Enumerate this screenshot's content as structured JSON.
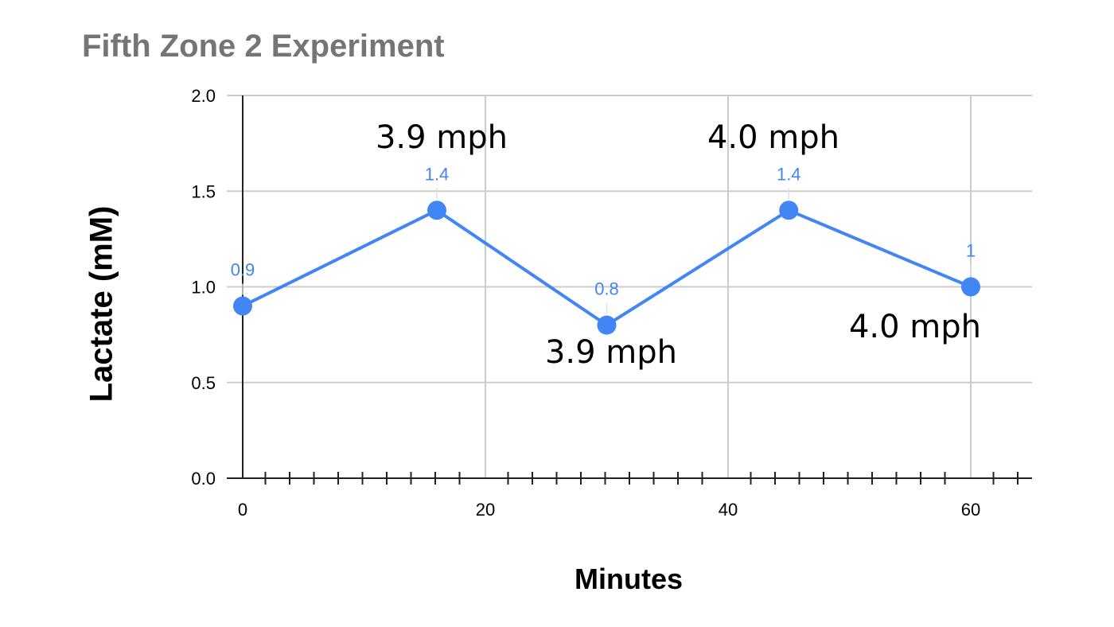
{
  "chart_data": {
    "type": "line",
    "title": "Fifth Zone 2 Experiment",
    "xlabel": "Minutes",
    "ylabel": "Lactate (mM)",
    "x": [
      0,
      16,
      30,
      45,
      60
    ],
    "series": [
      {
        "name": "Lactate (mM)",
        "values": [
          0.9,
          1.4,
          0.8,
          1.4,
          1.0
        ],
        "data_labels": [
          "0.9",
          "1.4",
          "0.8",
          "1.4",
          "1"
        ],
        "color": "#4285f4"
      }
    ],
    "xlim": [
      0,
      65
    ],
    "ylim": [
      0,
      2.0
    ],
    "x_ticks": [
      0,
      20,
      40,
      60
    ],
    "x_tick_labels": [
      "0",
      "20",
      "40",
      "60"
    ],
    "x_minor_tick_step": 2,
    "y_ticks": [
      0,
      0.5,
      1.0,
      1.5,
      2.0
    ],
    "y_tick_labels": [
      "0.0",
      "0.5",
      "1.0",
      "1.5",
      "2.0"
    ],
    "grid": true,
    "legend": "none",
    "annotations": [
      {
        "text": "3.9 mph",
        "near_x": 16,
        "position": "above"
      },
      {
        "text": "3.9 mph",
        "near_x": 30,
        "position": "below"
      },
      {
        "text": "4.0 mph",
        "near_x": 45,
        "position": "above"
      },
      {
        "text": "4.0 mph",
        "near_x": 60,
        "position": "below"
      }
    ]
  },
  "colors": {
    "series": "#4285f4",
    "title": "#757575",
    "grid": "#cccccc",
    "axis": "#222222"
  }
}
